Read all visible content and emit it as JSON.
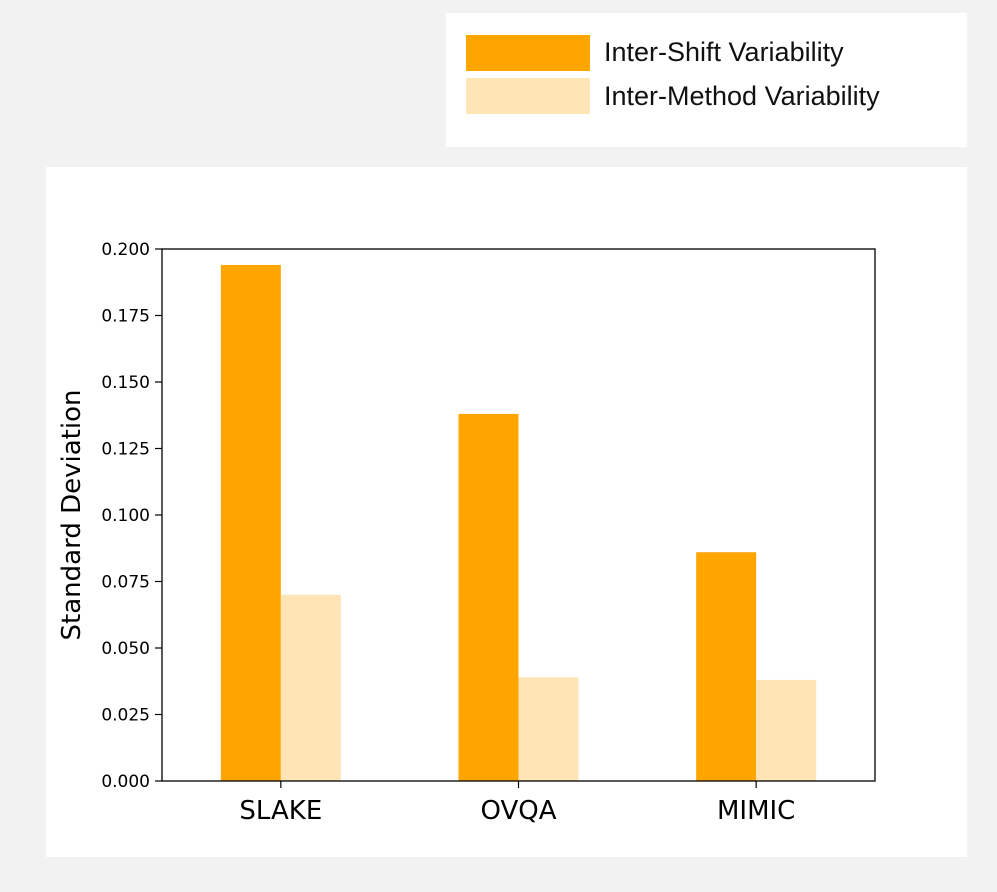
{
  "legend": {
    "items": [
      {
        "label": "Inter-Shift Variability",
        "color": "#ffa500"
      },
      {
        "label": "Inter-Method Variability",
        "color": "#ffe4b5"
      }
    ]
  },
  "chart_data": {
    "type": "bar",
    "categories": [
      "SLAKE",
      "OVQA",
      "MIMIC"
    ],
    "series": [
      {
        "name": "Inter-Shift Variability",
        "color": "#ffa500",
        "values": [
          0.194,
          0.138,
          0.086
        ]
      },
      {
        "name": "Inter-Method Variability",
        "color": "#ffe4b5",
        "values": [
          0.07,
          0.039,
          0.038
        ]
      }
    ],
    "ylabel": "Standard Deviation",
    "ylim": [
      0,
      0.2
    ],
    "yticks": [
      "0.000",
      "0.025",
      "0.050",
      "0.075",
      "0.100",
      "0.125",
      "0.150",
      "0.175",
      "0.200"
    ],
    "grid": false,
    "legend_position": "above-right"
  }
}
